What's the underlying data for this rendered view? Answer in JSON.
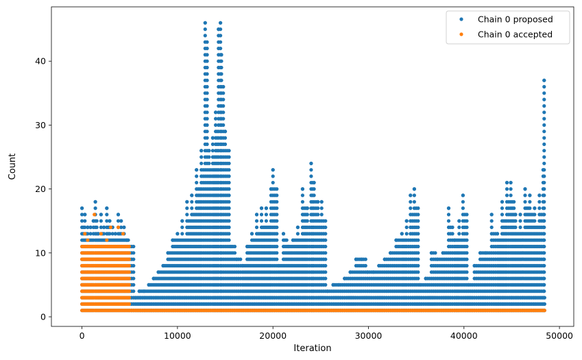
{
  "chart_data": {
    "type": "scatter",
    "xlabel": "Iteration",
    "ylabel": "Count",
    "xlim": [
      -3200,
      51500
    ],
    "ylim": [
      -1.5,
      48.5
    ],
    "xticks": [
      0,
      10000,
      20000,
      30000,
      40000,
      50000
    ],
    "yticks": [
      0,
      10,
      20,
      30,
      40
    ],
    "legend_position": "top-right",
    "grid": false,
    "series": [
      {
        "name": "Chain 0 proposed",
        "color": "#1f77b4",
        "base": {
          "x_range": [
            5200,
            48500
          ],
          "y_values": [
            1,
            2,
            3
          ]
        },
        "columns": [
          {
            "x": 0,
            "max": 17
          },
          {
            "x": 300,
            "max": 16
          },
          {
            "x": 600,
            "max": 14
          },
          {
            "x": 900,
            "max": 14
          },
          {
            "x": 1200,
            "max": 15
          },
          {
            "x": 1400,
            "max": 18
          },
          {
            "x": 1700,
            "max": 13
          },
          {
            "x": 2000,
            "max": 16
          },
          {
            "x": 2300,
            "max": 14
          },
          {
            "x": 2600,
            "max": 17
          },
          {
            "x": 2900,
            "max": 15
          },
          {
            "x": 3200,
            "max": 14
          },
          {
            "x": 3500,
            "max": 13
          },
          {
            "x": 3800,
            "max": 16
          },
          {
            "x": 4100,
            "max": 15
          },
          {
            "x": 4400,
            "max": 14
          },
          {
            "x": 4700,
            "max": 12
          },
          {
            "x": 5000,
            "max": 11
          },
          {
            "x": 5600,
            "max": 3
          },
          {
            "x": 6000,
            "max": 4
          },
          {
            "x": 6500,
            "max": 4
          },
          {
            "x": 7000,
            "max": 5
          },
          {
            "x": 7500,
            "max": 6
          },
          {
            "x": 8000,
            "max": 7
          },
          {
            "x": 8500,
            "max": 8
          },
          {
            "x": 9000,
            "max": 10
          },
          {
            "x": 9500,
            "max": 12
          },
          {
            "x": 10000,
            "max": 13
          },
          {
            "x": 10500,
            "max": 15
          },
          {
            "x": 11000,
            "max": 18
          },
          {
            "x": 11500,
            "max": 19
          },
          {
            "x": 12000,
            "max": 23
          },
          {
            "x": 12500,
            "max": 26
          },
          {
            "x": 12900,
            "max": 46
          },
          {
            "x": 13300,
            "max": 26
          },
          {
            "x": 13700,
            "max": 28
          },
          {
            "x": 14000,
            "max": 32
          },
          {
            "x": 14300,
            "max": 45
          },
          {
            "x": 14500,
            "max": 46
          },
          {
            "x": 14600,
            "max": 41
          },
          {
            "x": 14800,
            "max": 36
          },
          {
            "x": 15000,
            "max": 29
          },
          {
            "x": 15600,
            "max": 11
          },
          {
            "x": 16200,
            "max": 9
          },
          {
            "x": 16800,
            "max": 8
          },
          {
            "x": 17300,
            "max": 11
          },
          {
            "x": 17800,
            "max": 13
          },
          {
            "x": 18300,
            "max": 16
          },
          {
            "x": 18800,
            "max": 17
          },
          {
            "x": 19300,
            "max": 17
          },
          {
            "x": 19800,
            "max": 20
          },
          {
            "x": 20000,
            "max": 23
          },
          {
            "x": 20600,
            "max": 8
          },
          {
            "x": 21100,
            "max": 13
          },
          {
            "x": 21600,
            "max": 11
          },
          {
            "x": 22100,
            "max": 12
          },
          {
            "x": 22600,
            "max": 14
          },
          {
            "x": 23100,
            "max": 20
          },
          {
            "x": 23600,
            "max": 17
          },
          {
            "x": 24000,
            "max": 24
          },
          {
            "x": 24300,
            "max": 21
          },
          {
            "x": 24700,
            "max": 18
          },
          {
            "x": 25100,
            "max": 18
          },
          {
            "x": 25700,
            "max": 4
          },
          {
            "x": 26300,
            "max": 5
          },
          {
            "x": 26900,
            "max": 5
          },
          {
            "x": 27500,
            "max": 6
          },
          {
            "x": 28100,
            "max": 7
          },
          {
            "x": 28700,
            "max": 9
          },
          {
            "x": 29300,
            "max": 9
          },
          {
            "x": 29900,
            "max": 7
          },
          {
            "x": 30500,
            "max": 7
          },
          {
            "x": 31100,
            "max": 8
          },
          {
            "x": 31700,
            "max": 9
          },
          {
            "x": 32300,
            "max": 10
          },
          {
            "x": 32900,
            "max": 12
          },
          {
            "x": 33500,
            "max": 13
          },
          {
            "x": 34000,
            "max": 15
          },
          {
            "x": 34400,
            "max": 19
          },
          {
            "x": 34800,
            "max": 20
          },
          {
            "x": 35400,
            "max": 5
          },
          {
            "x": 36000,
            "max": 6
          },
          {
            "x": 36600,
            "max": 10
          },
          {
            "x": 37200,
            "max": 9
          },
          {
            "x": 37800,
            "max": 10
          },
          {
            "x": 38400,
            "max": 17
          },
          {
            "x": 39000,
            "max": 12
          },
          {
            "x": 39500,
            "max": 15
          },
          {
            "x": 39900,
            "max": 19
          },
          {
            "x": 40500,
            "max": 5
          },
          {
            "x": 41100,
            "max": 8
          },
          {
            "x": 41700,
            "max": 10
          },
          {
            "x": 42300,
            "max": 10
          },
          {
            "x": 42900,
            "max": 16
          },
          {
            "x": 43500,
            "max": 13
          },
          {
            "x": 44000,
            "max": 18
          },
          {
            "x": 44500,
            "max": 21
          },
          {
            "x": 44900,
            "max": 21
          },
          {
            "x": 45400,
            "max": 16
          },
          {
            "x": 45900,
            "max": 16
          },
          {
            "x": 46400,
            "max": 20
          },
          {
            "x": 46900,
            "max": 19
          },
          {
            "x": 47400,
            "max": 17
          },
          {
            "x": 47900,
            "max": 19
          },
          {
            "x": 48300,
            "max": 23
          },
          {
            "x": 48400,
            "max": 37
          }
        ]
      },
      {
        "name": "Chain 0 accepted",
        "color": "#ff7f0e",
        "block": {
          "x_range": [
            0,
            5000
          ],
          "y_range": [
            1,
            11
          ]
        },
        "line": {
          "x_range": [
            5000,
            48500
          ],
          "y": 1
        },
        "points": [
          {
            "x": 300,
            "y": 13
          },
          {
            "x": 1300,
            "y": 16
          },
          {
            "x": 2000,
            "y": 13
          },
          {
            "x": 3000,
            "y": 14
          },
          {
            "x": 3800,
            "y": 14
          },
          {
            "x": 4300,
            "y": 13
          },
          {
            "x": 600,
            "y": 12
          },
          {
            "x": 2600,
            "y": 12
          }
        ]
      }
    ]
  }
}
